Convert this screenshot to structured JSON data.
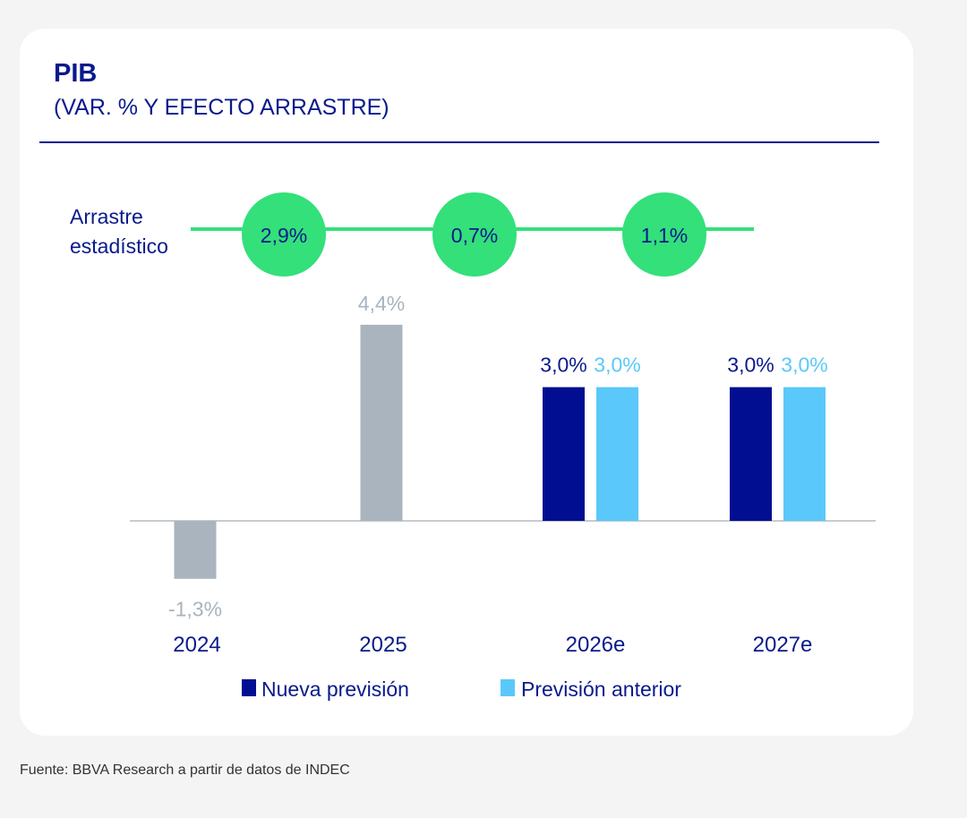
{
  "title": "PIB",
  "subtitle": "(VAR. % Y EFECTO ARRASTRE)",
  "source": "Fuente: BBVA Research a partir de datos de INDEC",
  "chart_data": {
    "type": "bar",
    "title": "PIB",
    "subtitle": "(VAR. % Y EFECTO ARRASTRE)",
    "categories": [
      "2024",
      "2025",
      "2026e",
      "2027e"
    ],
    "historical": {
      "values": [
        -1.3,
        4.4,
        null,
        null
      ],
      "labels": [
        "-1,3%",
        "4,4%",
        "",
        ""
      ],
      "color": "#a9b4be"
    },
    "series": [
      {
        "name": "Nueva previsión",
        "values": [
          null,
          null,
          3.0,
          3.0
        ],
        "labels": [
          "",
          "",
          "3,0%",
          "3,0%"
        ],
        "color": "#010e91"
      },
      {
        "name": "Previsión anterior",
        "values": [
          null,
          null,
          3.0,
          3.0
        ],
        "labels": [
          "",
          "",
          "3,0%",
          "3,0%"
        ],
        "color": "#5ac8fa"
      }
    ],
    "carryover": {
      "label_line1": "Arrastre",
      "label_line2": "estadístico",
      "values": [
        2.9,
        0.7,
        1.1
      ],
      "labels": [
        "2,9%",
        "0,7%",
        "1,1%"
      ],
      "color": "#33e07a"
    },
    "ylim": [
      -1.5,
      4.5
    ],
    "grid": false,
    "legend": "bottom",
    "colors": {
      "text": "#0a1a8c",
      "axis": "#c8cbd0"
    }
  }
}
